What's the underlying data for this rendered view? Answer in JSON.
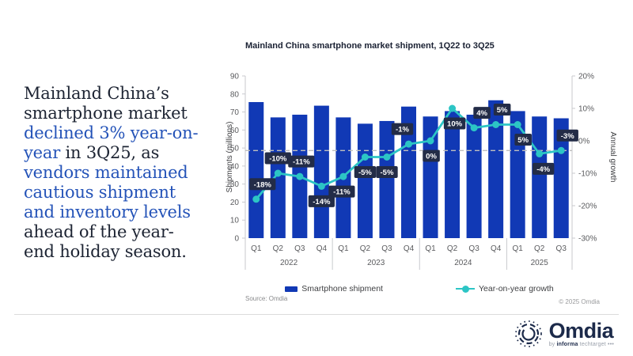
{
  "commentary": {
    "lines": [
      [
        {
          "t": "Mainland China’s",
          "c": "dark"
        }
      ],
      [
        {
          "t": "smartphone market",
          "c": "dark"
        }
      ],
      [
        {
          "t": "declined 3% year-on-",
          "c": "blue"
        }
      ],
      [
        {
          "t": "year",
          "c": "blue"
        },
        {
          "t": " in 3Q25, as",
          "c": "dark"
        }
      ],
      [
        {
          "t": "vendors maintained",
          "c": "blue"
        }
      ],
      [
        {
          "t": "cautious shipment",
          "c": "blue"
        }
      ],
      [
        {
          "t": "and inventory levels",
          "c": "blue"
        }
      ],
      [
        {
          "t": "ahead of the year-",
          "c": "dark"
        }
      ],
      [
        {
          "t": "end holiday season.",
          "c": "dark"
        }
      ]
    ],
    "colors": {
      "dark": "#1d2433",
      "blue": "#2453b8"
    }
  },
  "chart_data": {
    "type": "bar+line",
    "title": "Mainland China smartphone market shipment, 1Q22 to 3Q25",
    "categories": [
      "Q1",
      "Q2",
      "Q3",
      "Q4",
      "Q1",
      "Q2",
      "Q3",
      "Q4",
      "Q1",
      "Q2",
      "Q3",
      "Q4",
      "Q1",
      "Q2",
      "Q3"
    ],
    "year_groups": [
      {
        "label": "2022",
        "count": 4
      },
      {
        "label": "2023",
        "count": 4
      },
      {
        "label": "2024",
        "count": 4
      },
      {
        "label": "2025",
        "count": 3
      }
    ],
    "series": [
      {
        "name": "Smartphone shipment",
        "type": "bar",
        "color": "#1139b5",
        "values": [
          75.5,
          67,
          68.5,
          73.5,
          67,
          63.5,
          65,
          73,
          67.5,
          70.5,
          68.5,
          76.5,
          70.5,
          67.5,
          66.5
        ]
      },
      {
        "name": "Year-on-year growth",
        "type": "line",
        "color": "#2cc5c5",
        "values_pct": [
          -18,
          -10,
          -11,
          -14,
          -11,
          -5,
          -5,
          -1,
          0,
          10,
          4,
          5,
          5,
          -4,
          -3
        ],
        "labels": [
          "-18%",
          "-10%",
          "-11%",
          "-14%",
          "-11%",
          "-5%",
          "-5%",
          "-1%",
          "0%",
          "10%",
          "4%",
          "5%",
          "5%",
          "-4%",
          "-3%"
        ]
      }
    ],
    "label_placement": [
      {
        "pos": "above",
        "dx": 8
      },
      {
        "pos": "above",
        "dx": 0
      },
      {
        "pos": "above",
        "dx": 2
      },
      {
        "pos": "below",
        "dx": 0
      },
      {
        "pos": "below",
        "dx": -2
      },
      {
        "pos": "below",
        "dx": 0
      },
      {
        "pos": "below",
        "dx": 0
      },
      {
        "pos": "above",
        "dx": -8
      },
      {
        "pos": "below",
        "dx": 1
      },
      {
        "pos": "below",
        "dx": 3
      },
      {
        "pos": "above",
        "dx": 10
      },
      {
        "pos": "above",
        "dx": 8
      },
      {
        "pos": "below",
        "dx": 7
      },
      {
        "pos": "below",
        "dx": 5
      },
      {
        "pos": "above",
        "dx": 8
      }
    ],
    "point_label_style": {
      "bg": "#232c47",
      "fg": "#ffffff"
    },
    "left_axis": {
      "label": "Shipments (millions)",
      "min": 0,
      "max": 90,
      "step": 10
    },
    "right_axis": {
      "label": "Annual growth",
      "min": -30,
      "max": 20,
      "step": 10,
      "ticks": [
        "20%",
        "10%",
        "0%",
        "-10%",
        "-20%",
        "-30%"
      ]
    },
    "reference_line_pct": -3,
    "grid": false,
    "legend_position": "bottom"
  },
  "legend": {
    "items": [
      {
        "label": "Smartphone shipment",
        "marker": "bar",
        "color": "#1139b5"
      },
      {
        "label": "Year-on-year growth",
        "marker": "line-dot",
        "color": "#2cc5c5"
      }
    ]
  },
  "footer": {
    "source": "Source: Omdia",
    "copyright": "© 2025 Omdia"
  },
  "brand": {
    "name": "Omdia",
    "byline_prefix": "by",
    "byline_informa": "informa",
    "byline_suffix": "techtarget",
    "byline_dots": "•••"
  }
}
